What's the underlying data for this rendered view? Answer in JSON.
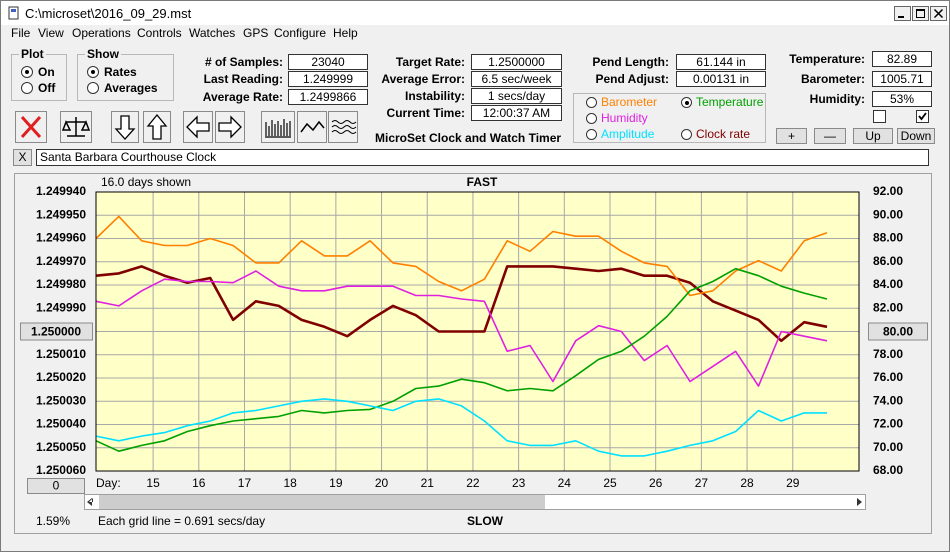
{
  "window": {
    "title": "C:\\microset\\2016_09_29.mst"
  },
  "menu": [
    "File",
    "View",
    "Operations",
    "Controls",
    "Watches",
    "GPS",
    "Configure",
    "Help"
  ],
  "plot": {
    "title": "Plot",
    "options": [
      "On",
      "Off"
    ],
    "selected": 0
  },
  "show": {
    "title": "Show",
    "options": [
      "Rates",
      "Averages"
    ],
    "selected": 0
  },
  "readings": [
    {
      "label": "# of Samples:",
      "value": "23040"
    },
    {
      "label": "Last Reading:",
      "value": "1.249999"
    },
    {
      "label": "Average Rate:",
      "value": "1.2499866"
    }
  ],
  "rates": [
    {
      "label": "Target Rate:",
      "value": "1.2500000"
    },
    {
      "label": "Average Error:",
      "value": "6.5 sec/week"
    },
    {
      "label": "Instability:",
      "value": "1 secs/day"
    },
    {
      "label": "Current Time:",
      "value": "12:00:37 AM"
    }
  ],
  "pendulum": [
    {
      "label": "Pend Length:",
      "value": "61.144 in"
    },
    {
      "label": "Pend Adjust:",
      "value": "0.00131 in"
    }
  ],
  "environment": [
    {
      "label": "Temperature:",
      "value": "82.89"
    },
    {
      "label": "Barometer:",
      "value": "1005.71"
    },
    {
      "label": "Humidity:",
      "value": "53%"
    }
  ],
  "checkboxes": [
    false,
    true
  ],
  "scale_buttons": [
    "+",
    "—",
    "Up",
    "Down"
  ],
  "app_label": "MicroSet Clock and Watch Timer",
  "clear_button": "X",
  "clock_name": "Santa Barbara Courthouse Clock",
  "chart_data": {
    "type": "line",
    "corner_note": "16.0 days shown",
    "top_label": "FAST",
    "bottom_label": "SLOW",
    "x_label": "Day:",
    "grid_note": "Each grid line = 0.691 secs/day",
    "percent_label": "1.59%",
    "offset_button": "0",
    "selected_series": 3,
    "grid": true,
    "xlim": [
      13.75,
      30.45
    ],
    "xticks": [
      15,
      16,
      17,
      18,
      19,
      20,
      21,
      22,
      23,
      24,
      25,
      26,
      27,
      28,
      29
    ],
    "ylim": [
      1.25006,
      1.24994
    ],
    "yticks": [
      {
        "value": 1.24994,
        "label": "1.249940"
      },
      {
        "value": 1.24995,
        "label": "1.249950"
      },
      {
        "value": 1.24996,
        "label": "1.249960"
      },
      {
        "value": 1.24997,
        "label": "1.249970"
      },
      {
        "value": 1.24998,
        "label": "1.249980"
      },
      {
        "value": 1.24999,
        "label": "1.249990"
      },
      {
        "value": 1.25,
        "label": "1.250000"
      },
      {
        "value": 1.25001,
        "label": "1.250010"
      },
      {
        "value": 1.25002,
        "label": "1.250020"
      },
      {
        "value": 1.25003,
        "label": "1.250030"
      },
      {
        "value": 1.25004,
        "label": "1.250040"
      },
      {
        "value": 1.25005,
        "label": "1.250050"
      },
      {
        "value": 1.25006,
        "label": "1.250060"
      }
    ],
    "y2lim": [
      68,
      92
    ],
    "y2ticks": [
      {
        "value": 92,
        "label": "92.00"
      },
      {
        "value": 90,
        "label": "90.00"
      },
      {
        "value": 88,
        "label": "88.00"
      },
      {
        "value": 86,
        "label": "86.00"
      },
      {
        "value": 84,
        "label": "84.00"
      },
      {
        "value": 82,
        "label": "82.00"
      },
      {
        "value": 80,
        "label": "80.00"
      },
      {
        "value": 78,
        "label": "78.00"
      },
      {
        "value": 76,
        "label": "76.00"
      },
      {
        "value": 74,
        "label": "74.00"
      },
      {
        "value": 72,
        "label": "72.00"
      },
      {
        "value": 70,
        "label": "70.00"
      },
      {
        "value": 68,
        "label": "68.00"
      }
    ],
    "x": [
      13.75,
      14.25,
      14.75,
      15.25,
      15.75,
      16.25,
      16.75,
      17.25,
      17.75,
      18.25,
      18.75,
      19.25,
      19.75,
      20.25,
      20.75,
      21.25,
      21.75,
      22.25,
      22.75,
      23.25,
      23.75,
      24.25,
      24.75,
      25.25,
      25.75,
      26.25,
      26.75,
      27.25,
      27.75,
      28.25,
      28.75,
      29.25,
      29.75
    ],
    "series": [
      {
        "name": "Clock rate",
        "color": "#800000",
        "axis": "y",
        "values": [
          1.249976,
          1.249975,
          1.249972,
          1.249976,
          1.249979,
          1.249977,
          1.249995,
          1.249987,
          1.249989,
          1.249995,
          1.249998,
          1.250002,
          1.249995,
          1.249989,
          1.249993,
          1.25,
          1.25,
          1.25,
          1.249972,
          1.249972,
          1.249972,
          1.249973,
          1.249974,
          1.249973,
          1.249976,
          1.249976,
          1.249979,
          1.249987,
          1.249991,
          1.249995,
          1.250004,
          1.249996,
          1.249998
        ]
      },
      {
        "name": "Barometer",
        "color": "#ff8000",
        "axis": "y2",
        "values": [
          88.0,
          89.9,
          87.8,
          87.4,
          87.4,
          88.0,
          87.4,
          85.9,
          85.9,
          87.8,
          86.5,
          86.5,
          87.8,
          85.9,
          85.6,
          84.3,
          83.5,
          84.5,
          87.8,
          86.9,
          88.6,
          88.2,
          88.2,
          86.9,
          85.9,
          85.6,
          83.1,
          83.5,
          85.2,
          86.1,
          85.2,
          87.8,
          88.5
        ]
      },
      {
        "name": "Humidity",
        "color": "#e020e0",
        "axis": "y2",
        "values": [
          82.6,
          82.2,
          83.5,
          84.5,
          84.3,
          84.3,
          84.2,
          85.2,
          83.9,
          83.5,
          83.5,
          83.9,
          83.9,
          83.9,
          83.1,
          83.1,
          82.8,
          82.6,
          78.3,
          78.8,
          75.7,
          79.2,
          80.5,
          80.0,
          77.5,
          78.8,
          75.7,
          77.0,
          78.3,
          75.3,
          80.0,
          79.6,
          79.2
        ]
      },
      {
        "name": "Temperature",
        "color": "#00a000",
        "axis": "y2",
        "values": [
          70.6,
          69.7,
          70.2,
          70.6,
          71.4,
          71.9,
          72.3,
          72.5,
          72.7,
          73.2,
          73.0,
          73.2,
          73.3,
          74.0,
          75.1,
          75.3,
          75.9,
          75.6,
          74.9,
          75.1,
          74.9,
          76.2,
          77.6,
          78.3,
          79.6,
          81.3,
          83.5,
          84.3,
          85.4,
          84.8,
          83.9,
          83.3,
          82.8
        ]
      },
      {
        "name": "Amplitude",
        "color": "#00e0ff",
        "axis": "y2",
        "values": [
          71.0,
          70.6,
          71.0,
          71.3,
          71.9,
          72.3,
          73.0,
          73.2,
          73.6,
          74.0,
          74.2,
          74.0,
          73.6,
          73.2,
          74.0,
          74.2,
          73.6,
          72.3,
          70.6,
          70.2,
          70.2,
          70.6,
          69.7,
          69.3,
          69.3,
          69.7,
          70.2,
          70.6,
          71.4,
          73.2,
          72.3,
          73.0,
          73.0
        ]
      }
    ]
  }
}
